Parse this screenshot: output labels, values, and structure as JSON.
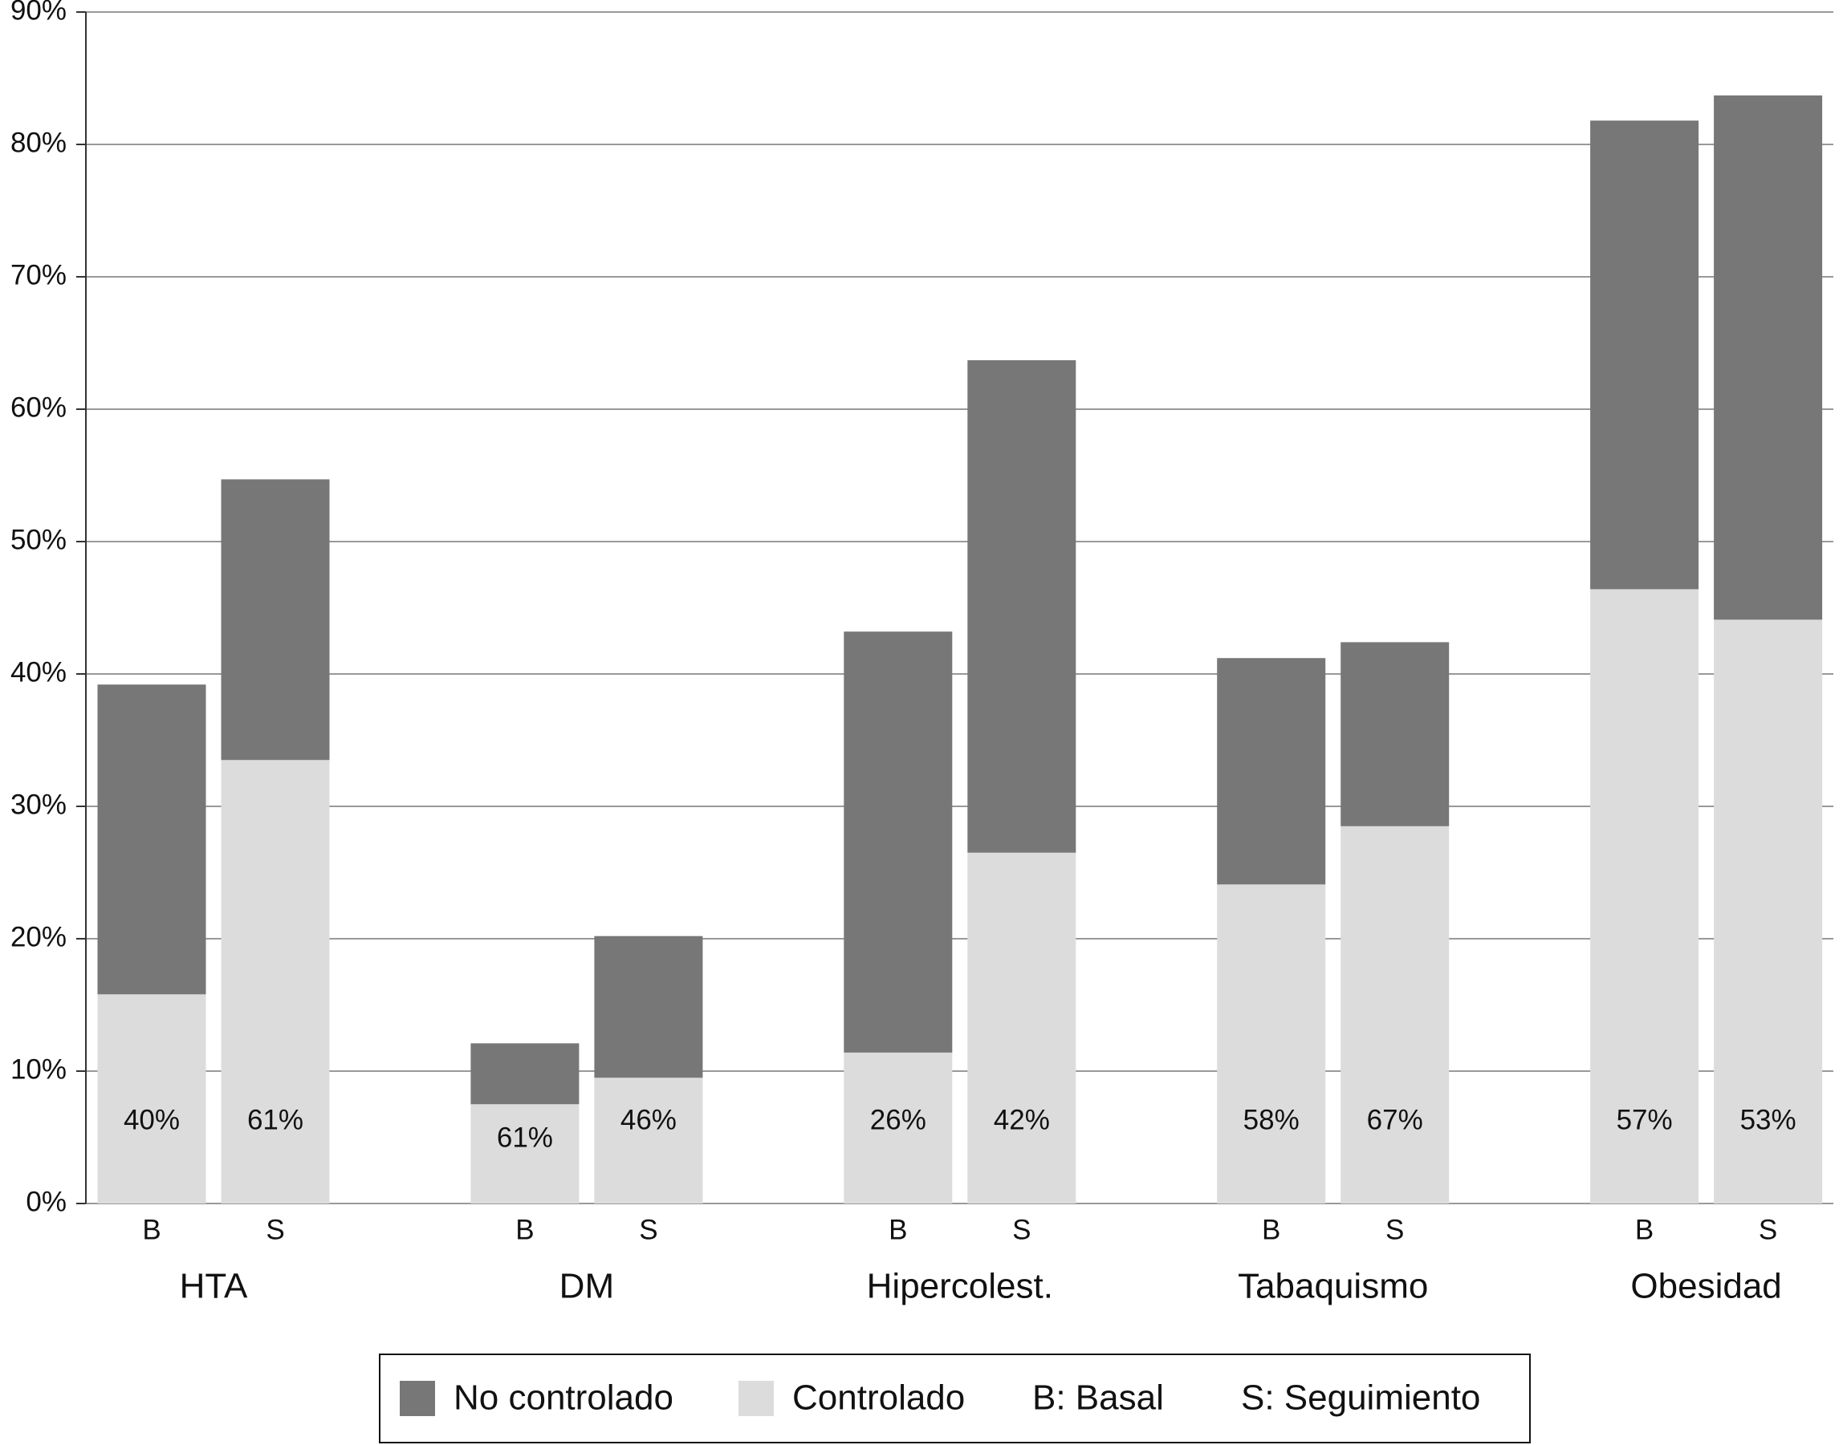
{
  "chart_data": {
    "type": "stacked_bar",
    "groups": [
      "HTA",
      "DM",
      "Hipercolest.",
      "Tabaquismo",
      "Obesidad"
    ],
    "categories": [
      "B",
      "S",
      "B",
      "S",
      "B",
      "S",
      "B",
      "S",
      "B",
      "S"
    ],
    "series": [
      {
        "name": "Controlado",
        "color": "#dcdcdc",
        "values": [
          15.8,
          33.5,
          7.5,
          9.5,
          11.4,
          26.5,
          24.1,
          28.5,
          46.4,
          44.1
        ]
      },
      {
        "name": "No controlado",
        "color": "#777777",
        "values": [
          23.4,
          21.2,
          4.6,
          10.7,
          31.8,
          37.2,
          17.1,
          13.9,
          35.4,
          39.6
        ]
      }
    ],
    "percent_labels": [
      "40%",
      "61%",
      "61%",
      "46%",
      "26%",
      "42%",
      "58%",
      "67%",
      "57%",
      "53%"
    ],
    "legend_notes": [
      "B: Basal",
      "S: Seguimiento"
    ],
    "ylim": [
      0,
      90
    ],
    "yticks": [
      {
        "value": 0,
        "label": "0%"
      },
      {
        "value": 10,
        "label": "10%"
      },
      {
        "value": 20,
        "label": "20%"
      },
      {
        "value": 30,
        "label": "30%"
      },
      {
        "value": 40,
        "label": "40%"
      },
      {
        "value": 50,
        "label": "50%"
      },
      {
        "value": 60,
        "label": "60%"
      },
      {
        "value": 70,
        "label": "70%"
      },
      {
        "value": 80,
        "label": "80%"
      },
      {
        "value": 90,
        "label": "90%"
      }
    ],
    "grid": true
  }
}
